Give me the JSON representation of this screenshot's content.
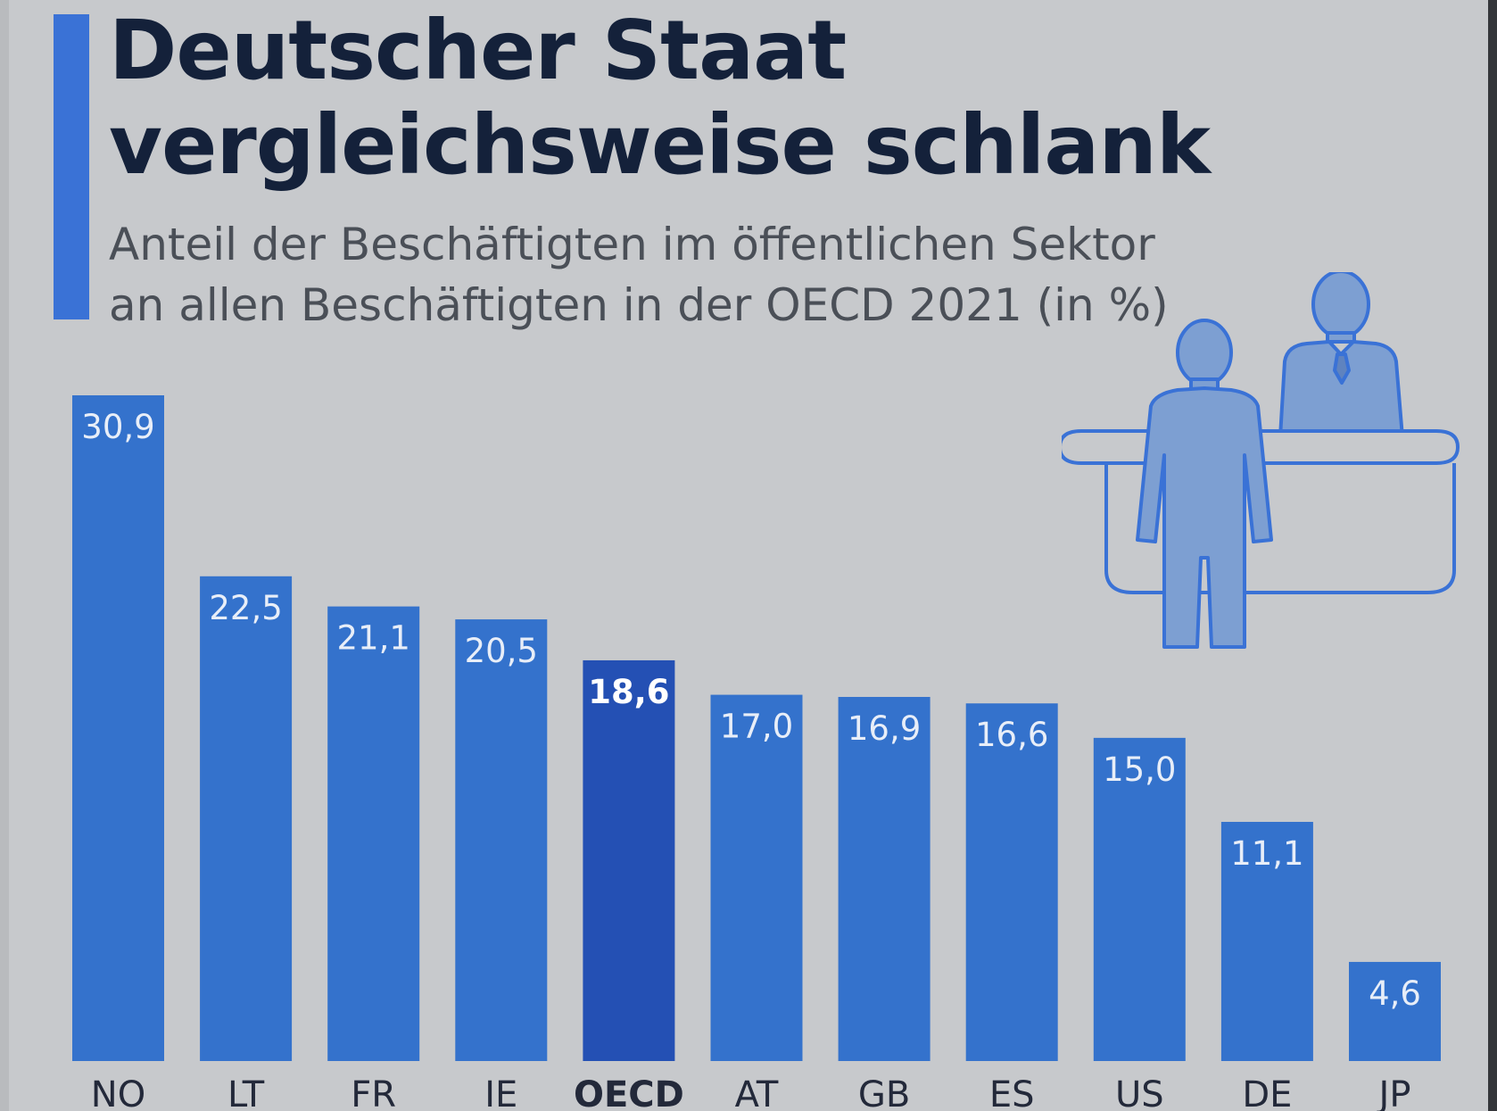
{
  "title_lines": [
    "Deutscher Staat",
    "vergleichsweise schlank"
  ],
  "subtitle_lines": [
    "Anteil der Beschäftigten im öffentlichen Sektor",
    "an allen Beschäftigten in der OECD 2021 (in %)"
  ],
  "colors": {
    "background": "#c7c9cc",
    "accent": "#3a72d6",
    "bar": "#3472cc",
    "bar_highlight": "#2450b4",
    "title": "#14213a",
    "subtitle": "#4a4f57",
    "axis_label": "#23293a",
    "value_label": "#e8eef8",
    "illustration_fill": "#7d9fd2",
    "illustration_stroke": "#3a72d6"
  },
  "illustration_icon": "service-desk-people-icon",
  "chart_data": {
    "type": "bar",
    "title": "Deutscher Staat vergleichsweise schlank",
    "subtitle": "Anteil der Beschäftigten im öffentlichen Sektor an allen Beschäftigten in der OECD 2021 (in %)",
    "categories": [
      "NO",
      "LT",
      "FR",
      "IE",
      "OECD",
      "AT",
      "GB",
      "ES",
      "US",
      "DE",
      "JP"
    ],
    "values": [
      30.9,
      22.5,
      21.1,
      20.5,
      18.6,
      17.0,
      16.9,
      16.6,
      15.0,
      11.1,
      4.6
    ],
    "value_labels": [
      "30,9",
      "22,5",
      "21,1",
      "20,5",
      "18,6",
      "17,0",
      "16,9",
      "16,6",
      "15,0",
      "11,1",
      "4,6"
    ],
    "highlight_category": "OECD",
    "ylim": [
      0,
      30.9
    ],
    "grid": false,
    "legend": "none",
    "xlabel": "",
    "ylabel": ""
  }
}
